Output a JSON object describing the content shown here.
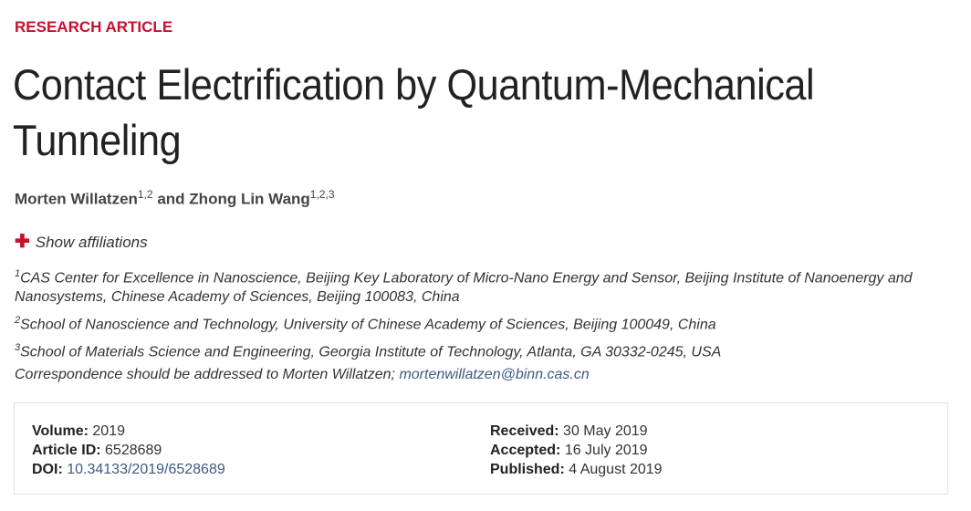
{
  "article_type": "RESEARCH ARTICLE",
  "title": "Contact Electrification by Quantum-Mechanical Tunneling",
  "authors": [
    {
      "name": "Morten Willatzen",
      "affiliations": "1,2"
    },
    {
      "name": "Zhong Lin Wang",
      "affiliations": "1,2,3"
    }
  ],
  "authors_joiner": "and",
  "show_affiliations": "Show affiliations",
  "affiliations": [
    {
      "num": "1",
      "text": "CAS Center for Excellence in Nanoscience, Beijing Key Laboratory of Micro-Nano Energy and Sensor, Beijing Institute of Nanoenergy and Nanosystems, Chinese Academy of Sciences, Beijing 100083, China"
    },
    {
      "num": "2",
      "text": "School of Nanoscience and Technology, University of Chinese Academy of Sciences, Beijing 100049, China"
    },
    {
      "num": "3",
      "text": "School of Materials Science and Engineering, Georgia Institute of Technology, Atlanta, GA 30332-0245, USA"
    }
  ],
  "correspondence": {
    "text": "Correspondence should be addressed to Morten Willatzen;",
    "email": "mortenwillatzen@binn.cas.cn"
  },
  "meta": {
    "volume_label": "Volume:",
    "volume": "2019",
    "article_id_label": "Article ID:",
    "article_id": "6528689",
    "doi_label": "DOI:",
    "doi": "10.34133/2019/6528689",
    "received_label": "Received:",
    "received": "30 May 2019",
    "accepted_label": "Accepted:",
    "accepted": "16 July 2019",
    "published_label": "Published:",
    "published": "4 August 2019"
  },
  "colors": {
    "accent": "#c8102e",
    "link": "#3d5a80"
  }
}
